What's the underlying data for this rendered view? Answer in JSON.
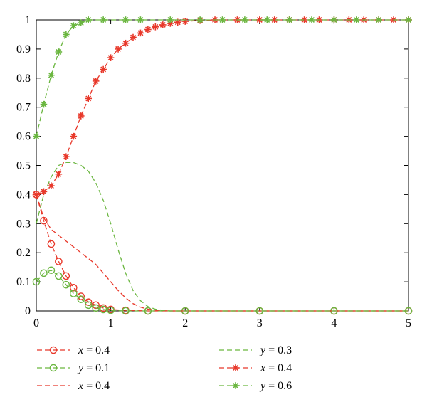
{
  "chart_data": {
    "type": "line",
    "title": "",
    "xlabel": "",
    "ylabel": "",
    "xlim": [
      0,
      5
    ],
    "ylim": [
      0,
      1
    ],
    "x_ticks": [
      "0",
      "1",
      "2",
      "3",
      "4",
      "5"
    ],
    "y_ticks": [
      "0",
      "0.1",
      "0.2",
      "0.3",
      "0.4",
      "0.5",
      "0.6",
      "0.7",
      "0.8",
      "0.9",
      "1"
    ],
    "grid": false,
    "legend_position": "bottom",
    "series": [
      {
        "name": "x = 0.4",
        "legend_var": "x",
        "legend_value": " = 0.4",
        "color": "#e8382a",
        "marker": "circle",
        "dash": true,
        "x": [
          0,
          0.1,
          0.2,
          0.3,
          0.4,
          0.5,
          0.6,
          0.7,
          0.8,
          0.9,
          1.0,
          1.2,
          1.5,
          2,
          3,
          4,
          5
        ],
        "y": [
          0.4,
          0.31,
          0.23,
          0.17,
          0.12,
          0.08,
          0.05,
          0.03,
          0.02,
          0.01,
          0.005,
          0.002,
          0,
          0,
          0,
          0,
          0
        ]
      },
      {
        "name": "y = 0.1",
        "legend_var": "y",
        "legend_value": " = 0.1",
        "color": "#6ab63f",
        "marker": "circle",
        "dash": true,
        "x": [
          0,
          0.1,
          0.2,
          0.3,
          0.4,
          0.5,
          0.6,
          0.7,
          0.8,
          0.9,
          1.0,
          1.2,
          1.5,
          2,
          3,
          4,
          5
        ],
        "y": [
          0.1,
          0.13,
          0.14,
          0.12,
          0.09,
          0.06,
          0.04,
          0.02,
          0.01,
          0.005,
          0.002,
          0,
          0,
          0,
          0,
          0,
          0
        ]
      },
      {
        "name": "x = 0.4",
        "legend_var": "x",
        "legend_value": " = 0.4",
        "color": "#e8382a",
        "marker": "none",
        "dash": true,
        "x": [
          0,
          0.05,
          0.1,
          0.2,
          0.3,
          0.4,
          0.5,
          0.6,
          0.7,
          0.8,
          0.9,
          1.0,
          1.1,
          1.2,
          1.3,
          1.4,
          1.5,
          1.6,
          1.7,
          1.8,
          2,
          3,
          4,
          5
        ],
        "y": [
          0.4,
          0.36,
          0.32,
          0.28,
          0.26,
          0.24,
          0.22,
          0.2,
          0.18,
          0.16,
          0.13,
          0.1,
          0.07,
          0.045,
          0.025,
          0.013,
          0.006,
          0.003,
          0.001,
          0,
          0,
          0,
          0,
          0
        ]
      },
      {
        "name": "y = 0.3",
        "legend_var": "y",
        "legend_value": " = 0.3",
        "color": "#6ab63f",
        "marker": "none",
        "dash": true,
        "x": [
          0,
          0.1,
          0.2,
          0.3,
          0.4,
          0.5,
          0.6,
          0.7,
          0.8,
          0.9,
          1.0,
          1.1,
          1.2,
          1.3,
          1.4,
          1.5,
          1.6,
          1.7,
          1.8,
          2,
          3,
          4,
          5
        ],
        "y": [
          0.3,
          0.4,
          0.46,
          0.5,
          0.51,
          0.51,
          0.5,
          0.48,
          0.44,
          0.38,
          0.3,
          0.21,
          0.13,
          0.07,
          0.035,
          0.015,
          0.006,
          0.002,
          0,
          0,
          0,
          0,
          0
        ]
      },
      {
        "name": "x = 0.4",
        "legend_var": "x",
        "legend_value": " = 0.4",
        "color": "#e8382a",
        "marker": "asterisk",
        "dash": true,
        "x": [
          0,
          0.1,
          0.2,
          0.3,
          0.4,
          0.5,
          0.6,
          0.7,
          0.8,
          0.9,
          1.0,
          1.1,
          1.2,
          1.3,
          1.4,
          1.5,
          1.6,
          1.7,
          1.8,
          1.9,
          2.0,
          2.2,
          2.4,
          2.7,
          3.0,
          3.2,
          3.4,
          3.6,
          3.8,
          4.0,
          4.2,
          4.4,
          4.6,
          4.8,
          5.0
        ],
        "y": [
          0.4,
          0.41,
          0.43,
          0.47,
          0.53,
          0.6,
          0.67,
          0.73,
          0.79,
          0.83,
          0.87,
          0.9,
          0.92,
          0.94,
          0.955,
          0.967,
          0.976,
          0.983,
          0.988,
          0.992,
          0.995,
          0.998,
          1.0,
          1.0,
          1.0,
          1.0,
          1.0,
          1.0,
          1.0,
          1.0,
          1.0,
          1.0,
          1.0,
          1.0,
          1.0
        ]
      },
      {
        "name": "y = 0.6",
        "legend_var": "y",
        "legend_value": " = 0.6",
        "color": "#6ab63f",
        "marker": "asterisk",
        "dash": true,
        "x": [
          0,
          0.1,
          0.2,
          0.3,
          0.4,
          0.5,
          0.6,
          0.7,
          0.9,
          1.2,
          1.4,
          1.8,
          2.2,
          2.5,
          2.8,
          3.1,
          3.4,
          3.7,
          4.0,
          4.3,
          4.6,
          5.0
        ],
        "y": [
          0.6,
          0.71,
          0.81,
          0.89,
          0.95,
          0.98,
          0.99,
          1.0,
          1.0,
          1.0,
          1.0,
          1.0,
          1.0,
          1.0,
          1.0,
          1.0,
          1.0,
          1.0,
          1.0,
          1.0,
          1.0,
          1.0
        ]
      }
    ]
  }
}
